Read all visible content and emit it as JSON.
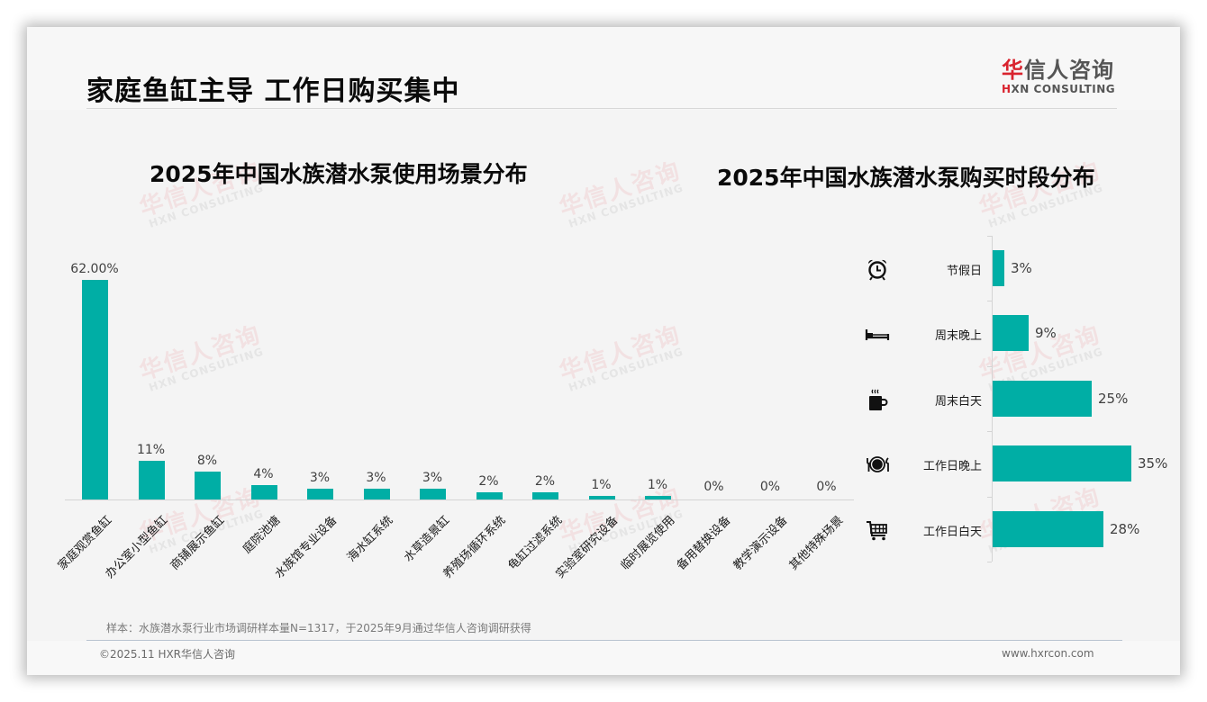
{
  "page": {
    "title": "家庭鱼缸主导 工作日购买集中",
    "logo": {
      "cn_red": "华",
      "cn_rest": "信人咨询",
      "en_red": "H",
      "en_rest": "XN CONSULTING"
    },
    "watermark": {
      "cn": "华信人咨询",
      "en": "HXN CONSULTING"
    },
    "footnote": "样本：水族潜水泵行业市场调研样本量N=1317，于2025年9月通过华信人咨询调研获得",
    "copyright": "©2025.11 HXR华信人咨询",
    "website": "www.hxrcon.com"
  },
  "accent_color": "#00aea5",
  "chart_data": [
    {
      "type": "bar",
      "title": "2025年中国水族潜水泵使用场景分布",
      "categories": [
        "家庭观赏鱼缸",
        "办公室小型鱼缸",
        "商铺展示鱼缸",
        "庭院池塘",
        "水族馆专业设备",
        "海水缸系统",
        "水草造景缸",
        "养殖场循环系统",
        "龟缸过滤系统",
        "实验室研究设备",
        "临时展览使用",
        "备用替换设备",
        "教学演示设备",
        "其他特殊场景"
      ],
      "values": [
        62,
        11,
        8,
        4,
        3,
        3,
        3,
        2,
        2,
        1,
        1,
        0,
        0,
        0
      ],
      "value_labels": [
        "62.00%",
        "11%",
        "8%",
        "4%",
        "3%",
        "3%",
        "3%",
        "2%",
        "2%",
        "1%",
        "1%",
        "0%",
        "0%",
        "0%"
      ],
      "xlabel": "",
      "ylabel": "",
      "ylim": [
        0,
        62
      ],
      "grid": false,
      "legend": "none",
      "color": "#00aea5"
    },
    {
      "type": "bar",
      "orientation": "horizontal",
      "title": "2025年中国水族潜水泵购买时段分布",
      "categories": [
        "节假日",
        "周末晚上",
        "周末白天",
        "工作日晚上",
        "工作日白天"
      ],
      "icons": [
        "alarm-clock-icon",
        "bed-icon",
        "coffee-cup-icon",
        "dinner-plate-icon",
        "shopping-cart-icon"
      ],
      "values": [
        3,
        9,
        25,
        35,
        28
      ],
      "value_labels": [
        "3%",
        "9%",
        "25%",
        "35%",
        "28%"
      ],
      "xlabel": "",
      "ylabel": "",
      "xlim": [
        0,
        35
      ],
      "grid": false,
      "legend": "none",
      "color": "#00aea5"
    }
  ]
}
